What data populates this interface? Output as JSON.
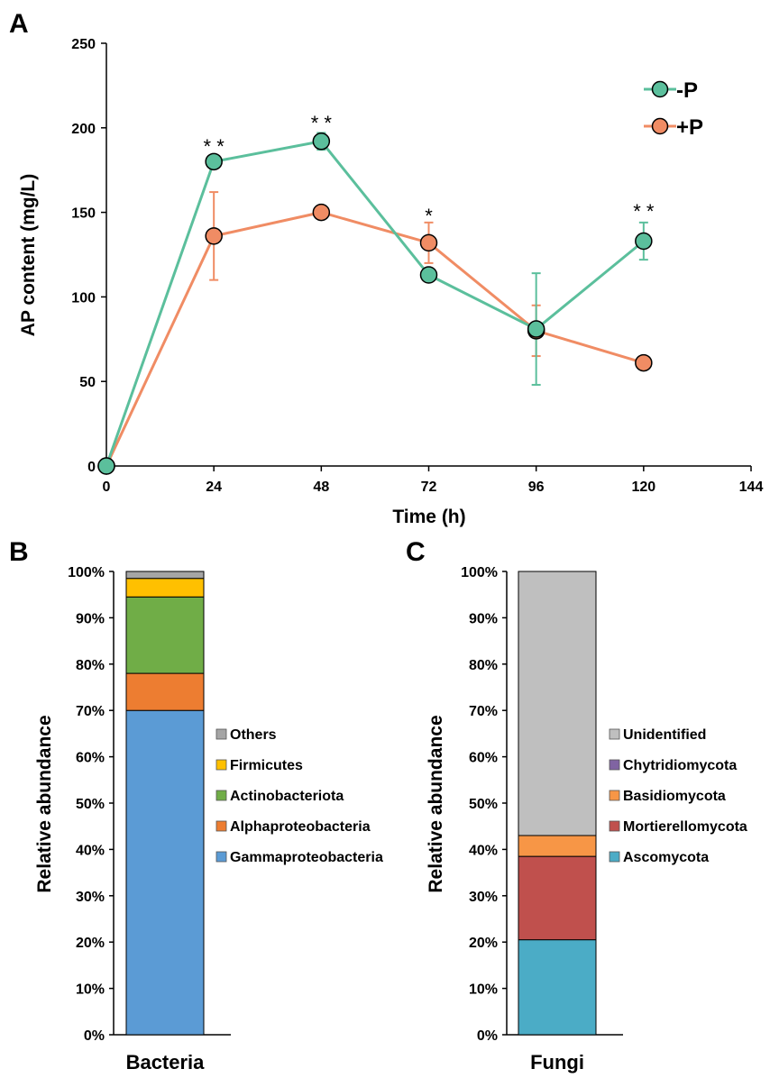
{
  "colors": {
    "minusP": "#5BBF9C",
    "plusP": "#F08C64",
    "axis": "#000000"
  },
  "chart_data": [
    {
      "panel": "A",
      "type": "line",
      "xlabel": "Time (h)",
      "ylabel": "AP content (mg/L)",
      "xlim": [
        0,
        144
      ],
      "ylim": [
        0,
        250
      ],
      "xticks": [
        0,
        24,
        48,
        72,
        96,
        120,
        144
      ],
      "yticks": [
        0,
        50,
        100,
        150,
        200,
        250
      ],
      "x": [
        0,
        24,
        48,
        72,
        96,
        120
      ],
      "series": [
        {
          "name": "-P",
          "color": "#5BBF9C",
          "values": [
            0,
            180,
            192,
            113,
            81,
            133
          ],
          "errors": [
            0,
            0,
            5,
            0,
            33,
            11
          ]
        },
        {
          "name": "+P",
          "color": "#F08C64",
          "values": [
            0,
            136,
            150,
            132,
            80,
            61
          ],
          "errors": [
            0,
            26,
            0,
            12,
            15,
            0
          ]
        }
      ],
      "annotations": [
        {
          "x": 24,
          "text": "* *"
        },
        {
          "x": 48,
          "text": "* *"
        },
        {
          "x": 72,
          "text": "*"
        },
        {
          "x": 120,
          "text": "* *"
        }
      ],
      "legend_position": "top-right"
    },
    {
      "panel": "B",
      "type": "bar",
      "stacked": true,
      "categories": [
        "Bacteria"
      ],
      "ylabel": "Relative abundance",
      "ylim": [
        0,
        100
      ],
      "yticks": [
        "0%",
        "10%",
        "20%",
        "30%",
        "40%",
        "50%",
        "60%",
        "70%",
        "80%",
        "90%",
        "100%"
      ],
      "series": [
        {
          "name": "Gammaproteobacteria",
          "color": "#5B9BD5",
          "values": [
            70
          ]
        },
        {
          "name": "Alphaproteobacteria",
          "color": "#ED7D31",
          "values": [
            8
          ]
        },
        {
          "name": "Actinobacteriota",
          "color": "#70AD47",
          "values": [
            16.5
          ]
        },
        {
          "name": "Firmicutes",
          "color": "#FFC000",
          "values": [
            4
          ]
        },
        {
          "name": "Others",
          "color": "#A5A5A5",
          "values": [
            1.5
          ]
        }
      ],
      "legend_position": "right"
    },
    {
      "panel": "C",
      "type": "bar",
      "stacked": true,
      "categories": [
        "Fungi"
      ],
      "ylabel": "Relative abundance",
      "ylim": [
        0,
        100
      ],
      "yticks": [
        "0%",
        "10%",
        "20%",
        "30%",
        "40%",
        "50%",
        "60%",
        "70%",
        "80%",
        "90%",
        "100%"
      ],
      "series": [
        {
          "name": "Ascomycota",
          "color": "#4BACC6",
          "values": [
            20.5
          ]
        },
        {
          "name": "Mortierellomycota",
          "color": "#C0504D",
          "values": [
            18
          ]
        },
        {
          "name": "Basidiomycota",
          "color": "#F79646",
          "values": [
            4.5
          ]
        },
        {
          "name": "Chytridiomycota",
          "color": "#8064A2",
          "values": [
            0
          ]
        },
        {
          "name": "Unidentified",
          "color": "#BFBFBF",
          "values": [
            57
          ]
        }
      ],
      "legend_position": "right"
    }
  ]
}
